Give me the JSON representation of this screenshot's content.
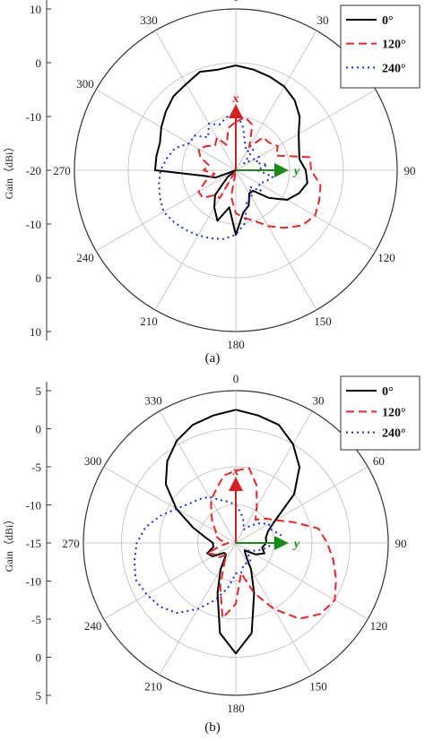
{
  "chart_data": [
    {
      "type": "polar-line",
      "caption": "(a)",
      "ylabel": "Gain（dBi）",
      "r_ticks": [
        "10",
        "0",
        "-10",
        "-20",
        "-10",
        "0",
        "10"
      ],
      "radial_tick_labels_plot": [
        "-20",
        "-10",
        "0",
        "10"
      ],
      "r_range": [
        -20,
        10
      ],
      "angle_labels": [
        "0",
        "30",
        "60",
        "90",
        "120",
        "150",
        "180",
        "210",
        "240",
        "270",
        "300",
        "330"
      ],
      "angle_direction": "clockwise",
      "angle_zero": "top",
      "grid": true,
      "legend_position": "top-right",
      "axes_overlay": {
        "x_label": "x",
        "y_label": "y",
        "x_color": "#d42020",
        "y_color": "#1a8a1a"
      },
      "series": [
        {
          "name": "0°",
          "color": "#000000",
          "style": "solid",
          "angles": [
            0,
            10,
            20,
            30,
            40,
            50,
            60,
            70,
            80,
            90,
            100,
            110,
            120,
            130,
            140,
            150,
            160,
            170,
            180,
            190,
            200,
            210,
            220,
            230,
            240,
            250,
            260,
            270,
            280,
            290,
            300,
            310,
            320,
            330,
            340,
            350
          ],
          "gains": [
            -0.5,
            -1,
            -1.5,
            -2,
            -3,
            -4.5,
            -6.5,
            -7.5,
            -8,
            -7,
            -6.5,
            -7.5,
            -9,
            -12,
            -15,
            -15,
            -13,
            -12,
            -8,
            -13,
            -10,
            -12,
            -14,
            -18,
            -20,
            -16,
            -14,
            -5,
            -5,
            -5,
            -4,
            -3,
            -2,
            -1.5,
            -0.5,
            -1
          ]
        },
        {
          "name": "120°",
          "color": "#e8262a",
          "style": "dashed",
          "angles": [
            0,
            10,
            20,
            30,
            40,
            50,
            60,
            70,
            80,
            90,
            100,
            110,
            120,
            130,
            140,
            150,
            160,
            170,
            180,
            190,
            200,
            210,
            220,
            230,
            240,
            250,
            260,
            270,
            280,
            290,
            300,
            310,
            320,
            330,
            340,
            350
          ],
          "gains": [
            -11,
            -10,
            -11,
            -15,
            -12,
            -12,
            -11,
            -12,
            -6,
            -6,
            -4,
            -3.5,
            -3,
            -4,
            -6,
            -8,
            -10,
            -11,
            -12,
            -15,
            -20,
            -14,
            -14,
            -12,
            -12,
            -14,
            -16,
            -14,
            -15,
            -13,
            -12,
            -13,
            -14,
            -13,
            -15,
            -12
          ]
        },
        {
          "name": "240°",
          "color": "#1a2fd8",
          "style": "dotted",
          "angles": [
            0,
            10,
            20,
            30,
            40,
            50,
            60,
            70,
            80,
            90,
            100,
            110,
            120,
            130,
            140,
            150,
            160,
            170,
            180,
            190,
            200,
            210,
            220,
            230,
            240,
            250,
            260,
            270,
            280,
            290,
            300,
            310,
            320,
            330,
            340,
            350
          ],
          "gains": [
            -9,
            -12,
            -15,
            -16,
            -15,
            -18,
            -15,
            -16,
            -14,
            -16,
            -13,
            -14,
            -15,
            -14,
            -16,
            -14,
            -14,
            -10,
            -8,
            -7,
            -6.5,
            -6,
            -5.5,
            -5,
            -4.5,
            -5,
            -5.5,
            -6,
            -7,
            -8,
            -10,
            -10,
            -12,
            -10,
            -11,
            -10
          ]
        }
      ],
      "legend": [
        "0°",
        "120°",
        "240°"
      ]
    },
    {
      "type": "polar-line",
      "caption": "(b)",
      "ylabel": "Gain（dBi）",
      "r_ticks": [
        "5",
        "0",
        "-5",
        "-10",
        "-15",
        "-10",
        "-5",
        "0",
        "5"
      ],
      "radial_tick_labels_plot": [
        "-15",
        "-10",
        "-5",
        "0",
        "5"
      ],
      "r_range": [
        -15,
        5
      ],
      "angle_labels": [
        "0",
        "30",
        "60",
        "90",
        "120",
        "150",
        "180",
        "210",
        "240",
        "270",
        "300",
        "330"
      ],
      "angle_direction": "clockwise",
      "angle_zero": "top",
      "grid": true,
      "legend_position": "top-right",
      "axes_overlay": {
        "x_label": "x",
        "y_label": "y",
        "x_color": "#d42020",
        "y_color": "#1a8a1a"
      },
      "series": [
        {
          "name": "0°",
          "color": "#000000",
          "style": "solid",
          "angles": [
            0,
            10,
            20,
            30,
            40,
            50,
            60,
            70,
            80,
            90,
            100,
            110,
            120,
            130,
            140,
            150,
            160,
            170,
            180,
            190,
            200,
            210,
            220,
            230,
            240,
            250,
            260,
            270,
            280,
            290,
            300,
            310,
            320,
            330,
            340,
            350
          ],
          "gains": [
            2.5,
            2,
            1.5,
            0,
            -2,
            -5,
            -9,
            -10.5,
            -11,
            -11,
            -11.5,
            -11,
            -12,
            -13.5,
            -13,
            -11,
            -8,
            -3,
            -0.5,
            -3,
            -8,
            -11,
            -13,
            -13,
            -11.5,
            -11,
            -12,
            -12,
            -11,
            -9,
            -6,
            -3,
            -1,
            0.5,
            1.5,
            2
          ]
        },
        {
          "name": "120°",
          "color": "#e8262a",
          "style": "dashed",
          "angles": [
            0,
            10,
            20,
            30,
            40,
            50,
            60,
            70,
            80,
            90,
            100,
            110,
            120,
            130,
            140,
            150,
            160,
            170,
            180,
            190,
            200,
            210,
            220,
            230,
            240,
            250,
            260,
            270,
            280,
            290,
            300,
            310,
            320,
            330,
            340,
            350
          ],
          "gains": [
            -5.5,
            -5,
            -7,
            -9.5,
            -11,
            -10,
            -9,
            -7,
            -4,
            -3,
            -2,
            -1,
            0,
            -0.5,
            -2,
            -5,
            -8,
            -11,
            -7,
            -5,
            -9,
            -12,
            -13,
            -12,
            -12,
            -11,
            -13,
            -14,
            -13,
            -12,
            -12,
            -11,
            -10,
            -8.5,
            -7.5,
            -6
          ]
        },
        {
          "name": "240°",
          "color": "#1a2fd8",
          "style": "dotted",
          "angles": [
            0,
            10,
            20,
            30,
            40,
            50,
            60,
            70,
            80,
            90,
            100,
            110,
            120,
            130,
            140,
            150,
            160,
            170,
            180,
            190,
            200,
            210,
            220,
            230,
            240,
            250,
            260,
            270,
            280,
            290,
            300,
            310,
            320,
            330,
            340,
            350
          ],
          "gains": [
            -10,
            -11,
            -12,
            -13,
            -12,
            -11,
            -10,
            -10,
            -9,
            -10,
            -11,
            -12,
            -13,
            -13,
            -12,
            -12,
            -12,
            -11,
            -11,
            -9,
            -7,
            -5,
            -3,
            -2,
            -1.5,
            -1,
            -1.5,
            -2,
            -3,
            -4.5,
            -6,
            -7,
            -7.5,
            -8,
            -9,
            -9.5
          ]
        }
      ],
      "legend": [
        "0°",
        "120°",
        "240°"
      ]
    }
  ]
}
